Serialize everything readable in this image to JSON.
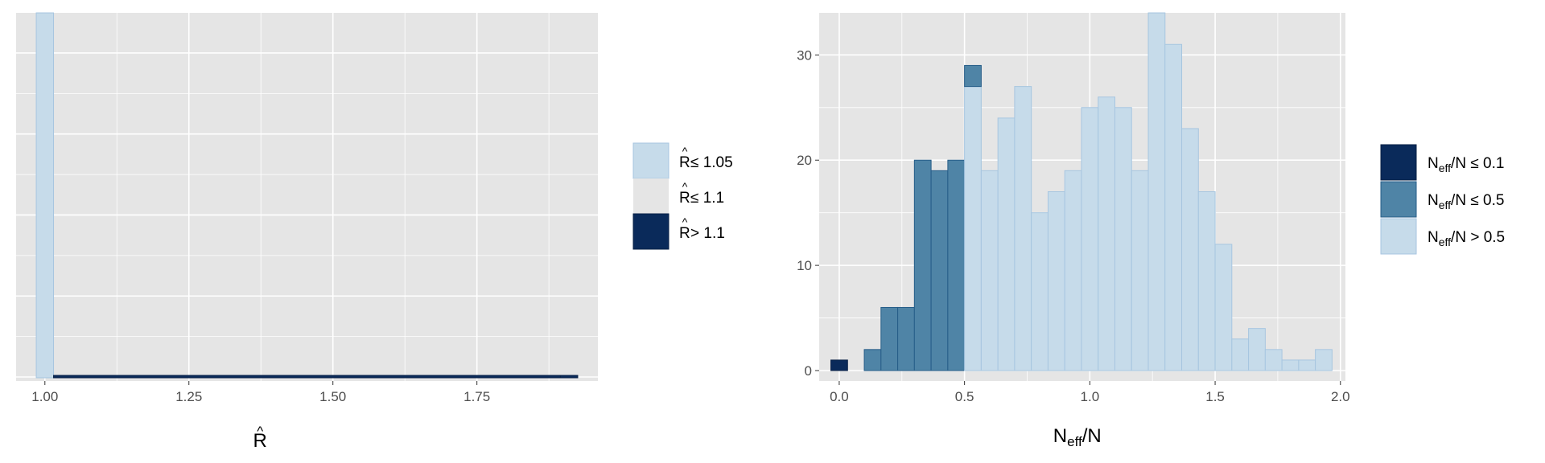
{
  "colors": {
    "panel_bg": "#e5e5e5",
    "grid": "#ffffff",
    "light": "#c6dbea",
    "light_edge": "#a7c6e0",
    "mid": "#4f84a6",
    "mid_edge": "#265d88",
    "dark": "#0a2a5a",
    "dark_edge": "#082046",
    "mid_legend": "#e5e5e5"
  },
  "chart_data": [
    {
      "type": "bar",
      "xlabel_base": "R",
      "xlabel_accent": "^",
      "xlim": [
        0.95,
        1.96
      ],
      "x_ticks": [
        1.0,
        1.25,
        1.5,
        1.75
      ],
      "x_tick_labels": [
        "1.00",
        "1.25",
        "1.50",
        "1.75"
      ],
      "bins": [
        {
          "x0": 0.985,
          "x1": 1.015,
          "count": 368,
          "class": "light"
        },
        {
          "x0": 1.015,
          "x1": 1.895,
          "count": 0,
          "class": "dark"
        },
        {
          "x0": 1.895,
          "x1": 1.925,
          "count": 1,
          "class": "dark"
        }
      ],
      "ylim": [
        0,
        370
      ],
      "legend": [
        {
          "class": "light",
          "base": "R",
          "accent": "^",
          "suffix": " ≤ 1.05"
        },
        {
          "class": "mid_legend",
          "base": "R",
          "accent": "^",
          "suffix": " ≤ 1.1"
        },
        {
          "class": "dark",
          "base": "R",
          "accent": "^",
          "suffix": " > 1.1"
        }
      ]
    },
    {
      "type": "bar",
      "xlabel_main": "N",
      "xlabel_sub": "eff",
      "xlabel_tail": "/N",
      "xlim": [
        -0.08,
        2.02
      ],
      "ylim": [
        0,
        34
      ],
      "x_ticks": [
        0.0,
        0.5,
        1.0,
        1.5,
        2.0
      ],
      "x_tick_labels": [
        "0.0",
        "0.5",
        "1.0",
        "1.5",
        "2.0"
      ],
      "y_ticks": [
        0,
        10,
        20,
        30
      ],
      "y_tick_labels": [
        "0",
        "10",
        "20",
        "30"
      ],
      "bin_width": 0.0667,
      "bins": [
        {
          "center": 0.0,
          "count": 1,
          "class": "dark"
        },
        {
          "center": 0.0667,
          "count": 0,
          "class": "mid"
        },
        {
          "center": 0.1333,
          "count": 2,
          "class": "mid"
        },
        {
          "center": 0.2,
          "count": 6,
          "class": "mid"
        },
        {
          "center": 0.2667,
          "count": 6,
          "class": "mid"
        },
        {
          "center": 0.3333,
          "count": 20,
          "class": "mid"
        },
        {
          "center": 0.4,
          "count": 19,
          "class": "mid"
        },
        {
          "center": 0.4667,
          "count": 20,
          "class": "mid"
        },
        {
          "center": 0.5333,
          "count": 29,
          "split": 27,
          "class": "light"
        },
        {
          "center": 0.6,
          "count": 19,
          "class": "light"
        },
        {
          "center": 0.6667,
          "count": 24,
          "class": "light"
        },
        {
          "center": 0.7333,
          "count": 27,
          "class": "light"
        },
        {
          "center": 0.8,
          "count": 15,
          "class": "light"
        },
        {
          "center": 0.8667,
          "count": 17,
          "class": "light"
        },
        {
          "center": 0.9333,
          "count": 19,
          "class": "light"
        },
        {
          "center": 1.0,
          "count": 25,
          "class": "light"
        },
        {
          "center": 1.0667,
          "count": 26,
          "class": "light"
        },
        {
          "center": 1.1333,
          "count": 25,
          "class": "light"
        },
        {
          "center": 1.2,
          "count": 19,
          "class": "light"
        },
        {
          "center": 1.2667,
          "count": 34,
          "class": "light"
        },
        {
          "center": 1.3333,
          "count": 31,
          "class": "light"
        },
        {
          "center": 1.4,
          "count": 23,
          "class": "light"
        },
        {
          "center": 1.4667,
          "count": 17,
          "class": "light"
        },
        {
          "center": 1.5333,
          "count": 12,
          "class": "light"
        },
        {
          "center": 1.6,
          "count": 3,
          "class": "light"
        },
        {
          "center": 1.6667,
          "count": 4,
          "class": "light"
        },
        {
          "center": 1.7333,
          "count": 2,
          "class": "light"
        },
        {
          "center": 1.8,
          "count": 1,
          "class": "light"
        },
        {
          "center": 1.8667,
          "count": 1,
          "class": "light"
        },
        {
          "center": 1.9333,
          "count": 2,
          "class": "light"
        }
      ],
      "legend": [
        {
          "class": "dark",
          "main": "N",
          "sub": "eff",
          "suffix": "/N ≤ 0.1"
        },
        {
          "class": "mid",
          "main": "N",
          "sub": "eff",
          "suffix": "/N ≤ 0.5"
        },
        {
          "class": "light",
          "main": "N",
          "sub": "eff",
          "suffix": "/N > 0.5"
        }
      ]
    }
  ]
}
